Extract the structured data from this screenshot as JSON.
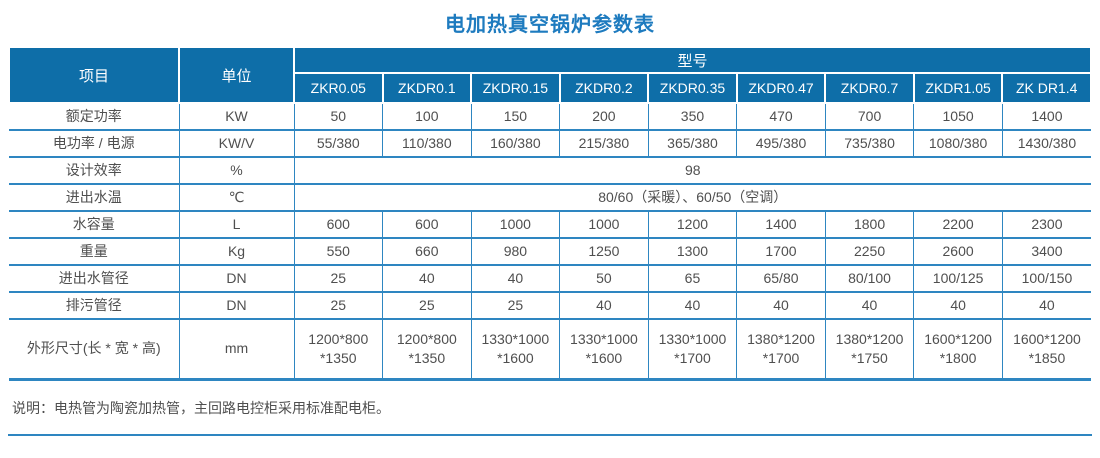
{
  "page": {
    "title": "电加热真空锅炉参数表",
    "note": "说明：电热管为陶瓷加热管，主回路电控柜采用标准配电柜。"
  },
  "colors": {
    "header_bg": "#0e6ea8",
    "border_color": "#2e86c1",
    "title_color": "#1e7bbf",
    "text_color": "#4f4f4f",
    "header_text": "#ffffff"
  },
  "table": {
    "header": {
      "item_label": "项目",
      "unit_label": "单位",
      "model_label": "型号",
      "models": [
        "ZKR0.05",
        "ZKDR0.1",
        "ZKDR0.15",
        "ZKDR0.2",
        "ZKDR0.35",
        "ZKDR0.47",
        "ZKDR0.7",
        "ZKDR1.05",
        "ZK DR1.4"
      ]
    },
    "rows": [
      {
        "item": "额定功率",
        "unit": "KW",
        "values": [
          "50",
          "100",
          "150",
          "200",
          "350",
          "470",
          "700",
          "1050",
          "1400"
        ]
      },
      {
        "item": "电功率 / 电源",
        "unit": "KW/V",
        "values": [
          "55/380",
          "110/380",
          "160/380",
          "215/380",
          "365/380",
          "495/380",
          "735/380",
          "1080/380",
          "1430/380"
        ]
      },
      {
        "item": "设计效率",
        "unit": "%",
        "merged": "98"
      },
      {
        "item": "进出水温",
        "unit": "℃",
        "merged": "80/60（采暖）、60/50（空调）"
      },
      {
        "item": "水容量",
        "unit": "L",
        "values": [
          "600",
          "600",
          "1000",
          "1000",
          "1200",
          "1400",
          "1800",
          "2200",
          "2300"
        ]
      },
      {
        "item": "重量",
        "unit": "Kg",
        "values": [
          "550",
          "660",
          "980",
          "1250",
          "1300",
          "1700",
          "2250",
          "2600",
          "3400"
        ]
      },
      {
        "item": "进出水管径",
        "unit": "DN",
        "values": [
          "25",
          "40",
          "40",
          "50",
          "65",
          "65/80",
          "80/100",
          "100/125",
          "100/150"
        ]
      },
      {
        "item": "排污管径",
        "unit": "DN",
        "values": [
          "25",
          "25",
          "25",
          "40",
          "40",
          "40",
          "40",
          "40",
          "40"
        ]
      },
      {
        "item": "外形尺寸(长 * 宽 * 高)",
        "unit": "mm",
        "tall": true,
        "values": [
          "1200*800\n*1350",
          "1200*800\n*1350",
          "1330*1000\n*1600",
          "1330*1000\n*1600",
          "1330*1000\n*1700",
          "1380*1200\n*1700",
          "1380*1200\n*1750",
          "1600*1200\n*1800",
          "1600*1200\n*1850"
        ]
      }
    ]
  }
}
